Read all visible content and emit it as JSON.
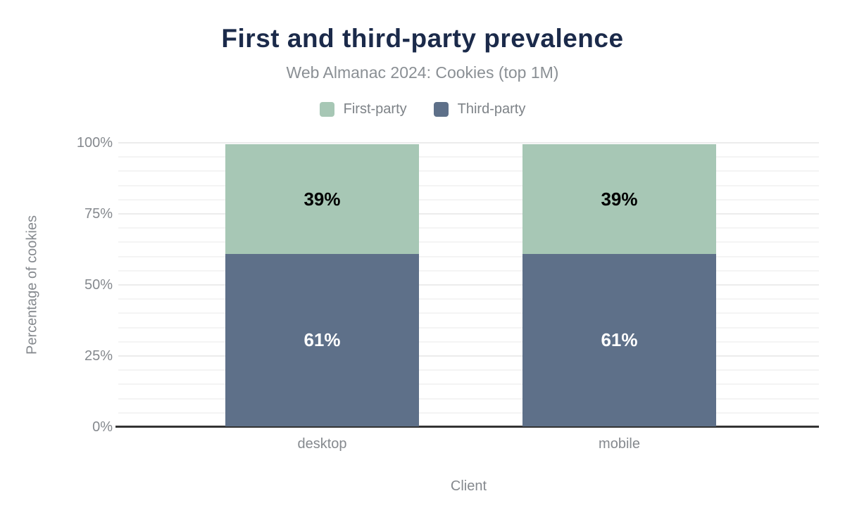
{
  "chart": {
    "title": "First and third-party prevalence",
    "subtitle": "Web Almanac 2024: Cookies (top 1M)"
  },
  "chart_data": {
    "type": "bar",
    "stacked": true,
    "title": "First and third-party prevalence",
    "subtitle": "Web Almanac 2024: Cookies (top 1M)",
    "xlabel": "Client",
    "ylabel": "Percentage of cookies",
    "categories": [
      "desktop",
      "mobile"
    ],
    "series": [
      {
        "name": "First-party",
        "color": "#a7c7b5",
        "label_color": "#000000",
        "values": [
          39,
          39
        ]
      },
      {
        "name": "Third-party",
        "color": "#5e7089",
        "label_color": "#ffffff",
        "values": [
          61,
          61
        ]
      }
    ],
    "value_suffix": "%",
    "ylim": [
      0,
      100
    ],
    "y_ticks": [
      0,
      25,
      50,
      75,
      100
    ],
    "y_tick_suffix": "%",
    "grid": "horizontal, minor every 5%, major every 25%",
    "legend_position": "top-center"
  },
  "colors": {
    "title": "#1b2a4a",
    "subtitle_text": "#8a8f94",
    "axis_text": "#85898e",
    "baseline": "#333333",
    "gridline_minor": "#f4f4f4",
    "gridline_major": "#ececec",
    "first_party": "#a7c7b5",
    "third_party": "#5e7089"
  }
}
